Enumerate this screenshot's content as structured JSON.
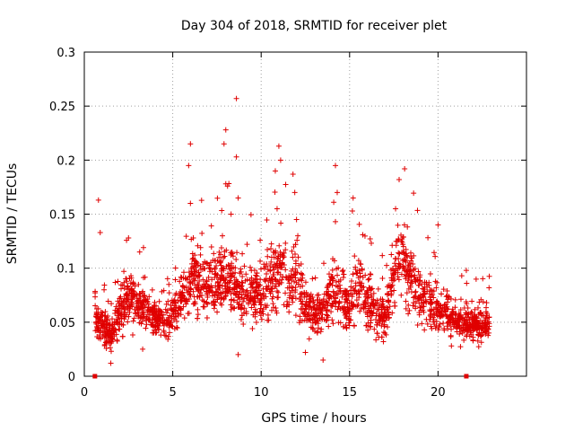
{
  "chart_data": {
    "type": "scatter",
    "title": "Day 304 of 2018, SRMTID for receiver plet",
    "xlabel": "GPS time / hours",
    "ylabel": "SRMTID / TECUs",
    "xlim": [
      0,
      25
    ],
    "ylim": [
      0,
      0.3
    ],
    "grid": true,
    "marker": "plus",
    "color": "#e00000",
    "xticks": [
      "0",
      "5",
      "10",
      "15",
      "20"
    ],
    "xtick_values": [
      0,
      5,
      10,
      15,
      20
    ],
    "yticks": [
      "0",
      "0.05",
      "0.1",
      "0.15",
      "0.2",
      "0.25",
      "0.3"
    ],
    "ytick_values": [
      0,
      0.05,
      0.1,
      0.15,
      0.2,
      0.25,
      0.3
    ],
    "axis_markers": [
      0.6,
      21.6
    ],
    "profile": [
      [
        0.6,
        0.06
      ],
      [
        1.0,
        0.045
      ],
      [
        1.5,
        0.04
      ],
      [
        2.0,
        0.06
      ],
      [
        2.5,
        0.072
      ],
      [
        3.0,
        0.068
      ],
      [
        3.5,
        0.062
      ],
      [
        4.0,
        0.055
      ],
      [
        4.5,
        0.05
      ],
      [
        5.0,
        0.058
      ],
      [
        5.5,
        0.072
      ],
      [
        6.0,
        0.09
      ],
      [
        6.5,
        0.09
      ],
      [
        7.0,
        0.085
      ],
      [
        7.5,
        0.085
      ],
      [
        8.0,
        0.09
      ],
      [
        8.5,
        0.085
      ],
      [
        9.0,
        0.075
      ],
      [
        9.5,
        0.078
      ],
      [
        10.0,
        0.072
      ],
      [
        10.5,
        0.085
      ],
      [
        11.0,
        0.1
      ],
      [
        11.5,
        0.085
      ],
      [
        12.0,
        0.092
      ],
      [
        12.5,
        0.065
      ],
      [
        13.0,
        0.055
      ],
      [
        13.5,
        0.058
      ],
      [
        14.0,
        0.08
      ],
      [
        14.5,
        0.072
      ],
      [
        15.0,
        0.06
      ],
      [
        15.5,
        0.09
      ],
      [
        16.0,
        0.07
      ],
      [
        16.5,
        0.06
      ],
      [
        17.0,
        0.055
      ],
      [
        17.5,
        0.095
      ],
      [
        18.0,
        0.11
      ],
      [
        18.5,
        0.09
      ],
      [
        19.0,
        0.075
      ],
      [
        19.5,
        0.068
      ],
      [
        20.0,
        0.06
      ],
      [
        20.5,
        0.06
      ],
      [
        21.0,
        0.052
      ],
      [
        21.5,
        0.05
      ],
      [
        22.0,
        0.048
      ],
      [
        22.5,
        0.048
      ],
      [
        22.9,
        0.047
      ]
    ],
    "outliers": [
      [
        0.8,
        0.163
      ],
      [
        0.9,
        0.133
      ],
      [
        6.0,
        0.215
      ],
      [
        5.9,
        0.195
      ],
      [
        6.0,
        0.16
      ],
      [
        8.0,
        0.228
      ],
      [
        7.9,
        0.215
      ],
      [
        8.0,
        0.178
      ],
      [
        8.1,
        0.176
      ],
      [
        8.3,
        0.15
      ],
      [
        8.6,
        0.257
      ],
      [
        8.6,
        0.203
      ],
      [
        8.7,
        0.165
      ],
      [
        10.8,
        0.19
      ],
      [
        11.0,
        0.213
      ],
      [
        11.1,
        0.2
      ],
      [
        10.9,
        0.155
      ],
      [
        11.8,
        0.187
      ],
      [
        11.9,
        0.17
      ],
      [
        12.0,
        0.145
      ],
      [
        14.2,
        0.195
      ],
      [
        14.3,
        0.17
      ],
      [
        14.2,
        0.143
      ],
      [
        15.2,
        0.165
      ],
      [
        17.8,
        0.182
      ],
      [
        17.6,
        0.155
      ],
      [
        18.1,
        0.14
      ],
      [
        20.0,
        0.14
      ],
      [
        2.5,
        0.128
      ],
      [
        21.6,
        0.098
      ],
      [
        8.7,
        0.02
      ],
      [
        12.5,
        0.022
      ],
      [
        3.3,
        0.025
      ],
      [
        1.5,
        0.012
      ],
      [
        13.5,
        0.015
      ]
    ],
    "n_points": 2400
  }
}
